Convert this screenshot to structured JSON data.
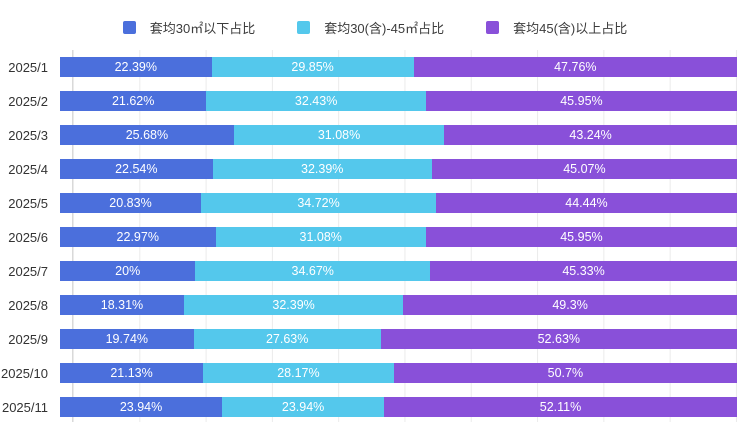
{
  "chart_data": {
    "type": "bar",
    "stacked": true,
    "orientation": "horizontal",
    "unit": "%",
    "xlim": [
      0,
      100
    ],
    "grid": true,
    "grid_interval_percent": 10,
    "legend_position": "top",
    "categories": [
      "2025/1",
      "2025/2",
      "2025/3",
      "2025/4",
      "2025/5",
      "2025/6",
      "2025/7",
      "2025/8",
      "2025/9",
      "2025/10",
      "2025/11"
    ],
    "series": [
      {
        "name": "套均30㎡以下占比",
        "color": "#4b6fdc",
        "values": [
          22.39,
          21.62,
          25.68,
          22.54,
          20.83,
          22.97,
          20,
          18.31,
          19.74,
          21.13,
          23.94
        ],
        "labels": [
          "22.39%",
          "21.62%",
          "25.68%",
          "22.54%",
          "20.83%",
          "22.97%",
          "20%",
          "18.31%",
          "19.74%",
          "21.13%",
          "23.94%"
        ]
      },
      {
        "name": "套均30(含)-45㎡占比",
        "color": "#54c8ec",
        "values": [
          29.85,
          32.43,
          31.08,
          32.39,
          34.72,
          31.08,
          34.67,
          32.39,
          27.63,
          28.17,
          23.94
        ],
        "labels": [
          "29.85%",
          "32.43%",
          "31.08%",
          "32.39%",
          "34.72%",
          "31.08%",
          "34.67%",
          "32.39%",
          "27.63%",
          "28.17%",
          "23.94%"
        ]
      },
      {
        "name": "套均45(含)以上占比",
        "color": "#8950d9",
        "values": [
          47.76,
          45.95,
          43.24,
          45.07,
          44.44,
          45.95,
          45.33,
          49.3,
          52.63,
          50.7,
          52.11
        ],
        "labels": [
          "47.76%",
          "45.95%",
          "43.24%",
          "45.07%",
          "44.44%",
          "45.95%",
          "45.33%",
          "49.3%",
          "52.63%",
          "50.7%",
          "52.11%"
        ]
      }
    ]
  },
  "colors": {
    "background": "#ffffff",
    "gridline": "#ebebeb",
    "axis_line": "#d9d9d9",
    "category_label_text": "#333333",
    "bar_value_text": "#ffffff",
    "legend_text": "#3c3c3c"
  }
}
